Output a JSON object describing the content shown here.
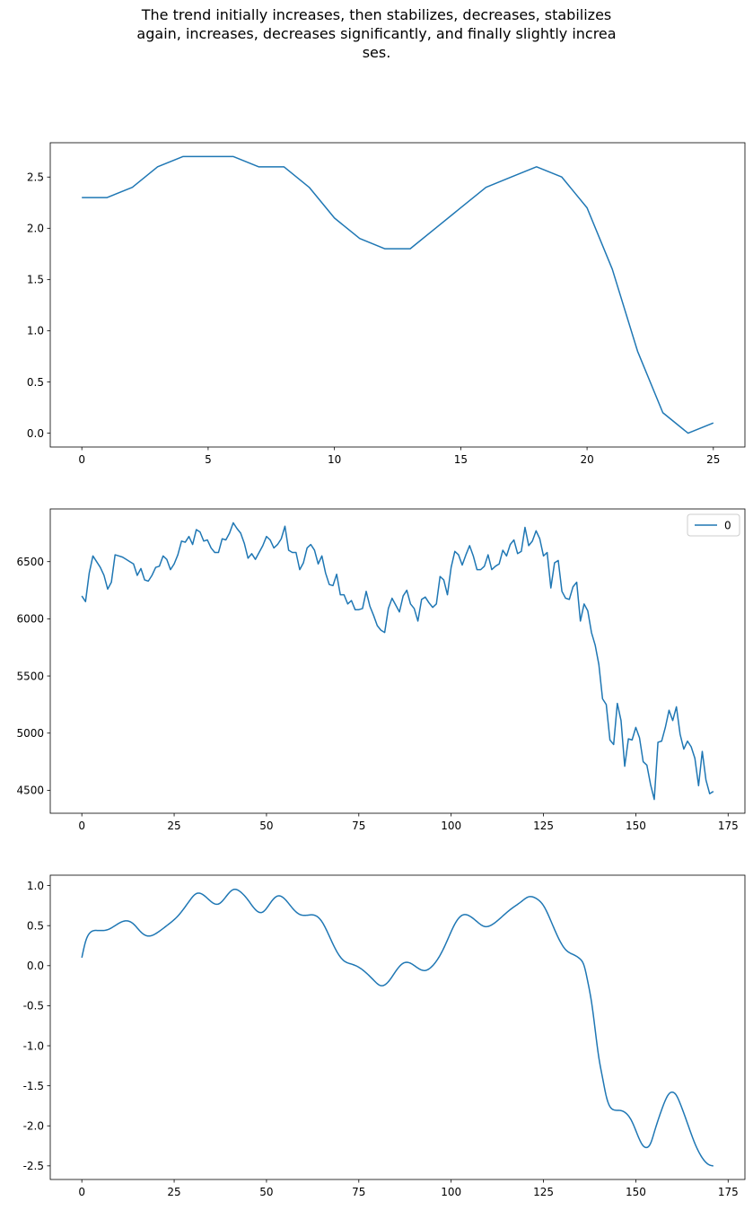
{
  "title_lines": [
    "The trend initially increases, then stabilizes, decreases, stabilizes",
    "again, increases, decreases significantly, and finally slightly increa",
    "ses."
  ],
  "colors": {
    "line": "#1f77b4",
    "axis": "#000000",
    "background": "#ffffff"
  },
  "chart_data": [
    {
      "type": "line",
      "x": [
        0,
        1,
        2,
        3,
        4,
        5,
        6,
        7,
        8,
        9,
        10,
        11,
        12,
        13,
        14,
        15,
        16,
        17,
        18,
        19,
        20,
        21,
        22,
        23,
        24,
        25
      ],
      "series": [
        {
          "values": [
            2.3,
            2.3,
            2.4,
            2.6,
            2.7,
            2.7,
            2.7,
            2.6,
            2.6,
            2.4,
            2.1,
            1.9,
            1.8,
            1.8,
            2.0,
            2.2,
            2.4,
            2.5,
            2.6,
            2.5,
            2.2,
            1.6,
            0.8,
            0.2,
            0.0,
            0.1
          ]
        }
      ],
      "xlim": [
        -1.25,
        26.25
      ],
      "ylim": [
        -0.135,
        2.835
      ],
      "xticks": [
        0,
        5,
        10,
        15,
        20,
        25
      ],
      "yticks": [
        0.0,
        0.5,
        1.0,
        1.5,
        2.0,
        2.5
      ],
      "ytick_labels": [
        "0.0",
        "0.5",
        "1.0",
        "1.5",
        "2.0",
        "2.5"
      ],
      "legend": null
    },
    {
      "type": "line",
      "x_range": [
        0,
        171
      ],
      "series": [
        {
          "name": "0",
          "values": [
            6200,
            6150,
            6400,
            6550,
            6500,
            6450,
            6380,
            6260,
            6320,
            6560,
            6550,
            6540,
            6520,
            6500,
            6480,
            6380,
            6440,
            6340,
            6330,
            6380,
            6450,
            6460,
            6550,
            6520,
            6430,
            6480,
            6560,
            6680,
            6670,
            6720,
            6650,
            6780,
            6760,
            6680,
            6690,
            6620,
            6580,
            6580,
            6700,
            6690,
            6750,
            6840,
            6790,
            6750,
            6660,
            6530,
            6570,
            6520,
            6580,
            6640,
            6720,
            6690,
            6620,
            6650,
            6700,
            6810,
            6600,
            6580,
            6580,
            6430,
            6490,
            6620,
            6650,
            6600,
            6480,
            6550,
            6400,
            6300,
            6290,
            6390,
            6210,
            6210,
            6130,
            6160,
            6080,
            6080,
            6090,
            6240,
            6110,
            6030,
            5940,
            5900,
            5880,
            6090,
            6180,
            6120,
            6060,
            6200,
            6250,
            6130,
            6090,
            5980,
            6170,
            6190,
            6140,
            6100,
            6130,
            6370,
            6340,
            6210,
            6450,
            6590,
            6560,
            6470,
            6560,
            6640,
            6550,
            6430,
            6430,
            6460,
            6560,
            6430,
            6460,
            6480,
            6600,
            6550,
            6650,
            6690,
            6570,
            6590,
            6800,
            6640,
            6680,
            6770,
            6700,
            6550,
            6580,
            6270,
            6490,
            6510,
            6240,
            6180,
            6170,
            6280,
            6320,
            5980,
            6130,
            6070,
            5880,
            5770,
            5600,
            5300,
            5250,
            4940,
            4900,
            5260,
            5110,
            4710,
            4950,
            4940,
            5050,
            4960,
            4750,
            4720,
            4550,
            4420,
            4920,
            4930,
            5050,
            5200,
            5110,
            5230,
            4990,
            4860,
            4930,
            4880,
            4780,
            4540,
            4840,
            4590,
            4470,
            4490
          ]
        }
      ],
      "xlim": [
        -8.55,
        179.55
      ],
      "ylim": [
        4299,
        6961
      ],
      "xticks": [
        0,
        25,
        50,
        75,
        100,
        125,
        150,
        175
      ],
      "yticks": [
        4500,
        5000,
        5500,
        6000,
        6500
      ],
      "ytick_labels": [
        "4500",
        "5000",
        "5500",
        "6000",
        "6500"
      ],
      "legend": {
        "position": "top-right",
        "entries": [
          "0"
        ]
      }
    },
    {
      "type": "line",
      "x_range": [
        0,
        171
      ],
      "series": [
        {
          "knots": [
            [
              0,
              0.1
            ],
            [
              1,
              0.3
            ],
            [
              2,
              0.4
            ],
            [
              4,
              0.44
            ],
            [
              7,
              0.45
            ],
            [
              9,
              0.5
            ],
            [
              12,
              0.56
            ],
            [
              14,
              0.52
            ],
            [
              16,
              0.42
            ],
            [
              18,
              0.37
            ],
            [
              20,
              0.4
            ],
            [
              23,
              0.5
            ],
            [
              26,
              0.62
            ],
            [
              29,
              0.8
            ],
            [
              31,
              0.9
            ],
            [
              33,
              0.88
            ],
            [
              35,
              0.8
            ],
            [
              37,
              0.77
            ],
            [
              39,
              0.86
            ],
            [
              41,
              0.95
            ],
            [
              43,
              0.92
            ],
            [
              45,
              0.82
            ],
            [
              47,
              0.7
            ],
            [
              49,
              0.67
            ],
            [
              51,
              0.78
            ],
            [
              53,
              0.87
            ],
            [
              55,
              0.83
            ],
            [
              57,
              0.72
            ],
            [
              59,
              0.64
            ],
            [
              61,
              0.63
            ],
            [
              63,
              0.63
            ],
            [
              65,
              0.55
            ],
            [
              67,
              0.37
            ],
            [
              69,
              0.18
            ],
            [
              71,
              0.06
            ],
            [
              73,
              0.02
            ],
            [
              75,
              -0.02
            ],
            [
              77,
              -0.09
            ],
            [
              79,
              -0.18
            ],
            [
              81,
              -0.25
            ],
            [
              83,
              -0.2
            ],
            [
              85,
              -0.07
            ],
            [
              87,
              0.03
            ],
            [
              89,
              0.03
            ],
            [
              91,
              -0.03
            ],
            [
              93,
              -0.06
            ],
            [
              95,
              0.0
            ],
            [
              97,
              0.13
            ],
            [
              99,
              0.32
            ],
            [
              101,
              0.52
            ],
            [
              103,
              0.63
            ],
            [
              105,
              0.62
            ],
            [
              107,
              0.55
            ],
            [
              109,
              0.49
            ],
            [
              111,
              0.51
            ],
            [
              113,
              0.58
            ],
            [
              116,
              0.7
            ],
            [
              119,
              0.8
            ],
            [
              121,
              0.86
            ],
            [
              123,
              0.84
            ],
            [
              125,
              0.75
            ],
            [
              127,
              0.56
            ],
            [
              129,
              0.35
            ],
            [
              131,
              0.2
            ],
            [
              133,
              0.14
            ],
            [
              135,
              0.08
            ],
            [
              136,
              0.0
            ],
            [
              137,
              -0.2
            ],
            [
              138,
              -0.45
            ],
            [
              139,
              -0.8
            ],
            [
              140,
              -1.15
            ],
            [
              141,
              -1.4
            ],
            [
              142,
              -1.63
            ],
            [
              143,
              -1.76
            ],
            [
              144,
              -1.8
            ],
            [
              146,
              -1.81
            ],
            [
              147,
              -1.83
            ],
            [
              149,
              -1.95
            ],
            [
              151,
              -2.17
            ],
            [
              152,
              -2.25
            ],
            [
              153,
              -2.27
            ],
            [
              154,
              -2.22
            ],
            [
              155,
              -2.08
            ],
            [
              157,
              -1.8
            ],
            [
              159,
              -1.6
            ],
            [
              160,
              -1.58
            ],
            [
              161,
              -1.62
            ],
            [
              162,
              -1.72
            ],
            [
              164,
              -1.97
            ],
            [
              166,
              -2.22
            ],
            [
              168,
              -2.4
            ],
            [
              170,
              -2.49
            ],
            [
              171,
              -2.5
            ]
          ]
        }
      ],
      "xlim": [
        -8.55,
        179.55
      ],
      "ylim": [
        -2.67,
        1.13
      ],
      "xticks": [
        0,
        25,
        50,
        75,
        100,
        125,
        150,
        175
      ],
      "yticks": [
        -2.5,
        -2.0,
        -1.5,
        -1.0,
        -0.5,
        0.0,
        0.5,
        1.0
      ],
      "ytick_labels": [
        "-2.5",
        "-2.0",
        "-1.5",
        "-1.0",
        "-0.5",
        "0.0",
        "0.5",
        "1.0"
      ],
      "legend": null
    }
  ]
}
